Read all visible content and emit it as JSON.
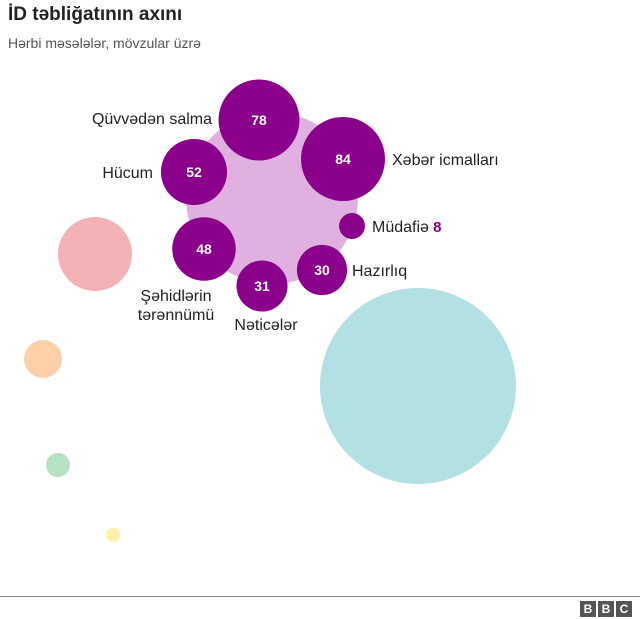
{
  "header": {
    "title": "İD təbliğatının axını",
    "subtitle": "Hərbi məsələlər, mövzular üzrə"
  },
  "footer": {
    "logo_letters": [
      "B",
      "B",
      "C"
    ]
  },
  "colors": {
    "main_group": "#8b008b",
    "main_group_background": "#e0b0e0",
    "teal": "#b3e0e3",
    "pink": "#f2b2b6",
    "orange": "#fdd0aa",
    "green": "#b5e2c0",
    "yellow": "#fdf0a8"
  },
  "chart_data": {
    "type": "bubble",
    "title": "İD təbliğatının axını",
    "subtitle": "Hərbi məsələlər, mövzular üzrə",
    "series": [
      {
        "group": "main",
        "points": [
          {
            "label": "Qüvvədən salma",
            "value": 78
          },
          {
            "label": "Xəbər icmalları",
            "value": 84
          },
          {
            "label": "Hücum",
            "value": 52
          },
          {
            "label": "Müdafiə",
            "value": 8
          },
          {
            "label": "Şəhidlərin tərənnümü",
            "value": 48
          },
          {
            "label": "Hazırlıq",
            "value": 30
          },
          {
            "label": "Nəticələr",
            "value": 31
          }
        ]
      }
    ],
    "other_groups": [
      {
        "color_name": "teal"
      },
      {
        "color_name": "pink"
      },
      {
        "color_name": "orange"
      },
      {
        "color_name": "green"
      },
      {
        "color_name": "yellow"
      }
    ]
  }
}
